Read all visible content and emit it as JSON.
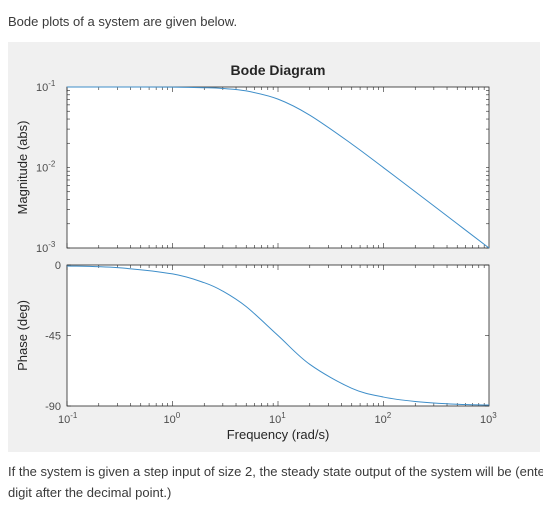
{
  "intro_text": "Bode plots of a system are given below.",
  "question_text": [
    "If the system is given a step input of size 2, the steady state output of the system will be (enter on",
    "digit after the decimal point.)"
  ],
  "colors": {
    "line": "#3e8ec9",
    "axes_bg": "#ffffff",
    "figure_bg": "#f0f0f0",
    "axis": "#262626"
  },
  "chart_data": [
    {
      "type": "line",
      "title": "Bode Diagram",
      "ylabel": "Magnitude (abs)",
      "xscale": "log",
      "yscale": "log",
      "xlim": [
        0.1,
        1000
      ],
      "ylim": [
        0.001,
        0.1
      ],
      "y_ticks": [
        {
          "value": 0.1,
          "base": "10",
          "exp": "-1"
        },
        {
          "value": 0.01,
          "base": "10",
          "exp": "-2"
        },
        {
          "value": 0.001,
          "base": "10",
          "exp": "-3"
        }
      ],
      "x": [
        0.1,
        0.3,
        1,
        2,
        3,
        5,
        10,
        20,
        50,
        100,
        200,
        500,
        1000
      ],
      "y": [
        0.1,
        0.1,
        0.0995,
        0.098,
        0.0958,
        0.0894,
        0.0707,
        0.0447,
        0.0196,
        0.00995,
        0.005,
        0.002,
        0.001
      ],
      "grid": false
    },
    {
      "type": "line",
      "ylabel": "Phase (deg)",
      "xlabel": "Frequency  (rad/s)",
      "xscale": "log",
      "xlim": [
        0.1,
        1000
      ],
      "ylim": [
        -90,
        0
      ],
      "y_ticks": [
        {
          "value": 0,
          "label": "0"
        },
        {
          "value": -45,
          "label": "-45"
        },
        {
          "value": -90,
          "label": "-90"
        }
      ],
      "x_ticks": [
        {
          "value": 0.1,
          "base": "10",
          "exp": "-1"
        },
        {
          "value": 1,
          "base": "10",
          "exp": "0"
        },
        {
          "value": 10,
          "base": "10",
          "exp": "1"
        },
        {
          "value": 100,
          "base": "10",
          "exp": "2"
        },
        {
          "value": 1000,
          "base": "10",
          "exp": "3"
        }
      ],
      "x": [
        0.1,
        0.3,
        1,
        2,
        3,
        5,
        10,
        20,
        50,
        100,
        200,
        500,
        1000
      ],
      "y": [
        -0.6,
        -1.7,
        -5.7,
        -11.3,
        -16.7,
        -26.6,
        -45,
        -63.4,
        -78.7,
        -84.3,
        -87.1,
        -88.9,
        -89.4
      ],
      "grid": false
    }
  ]
}
